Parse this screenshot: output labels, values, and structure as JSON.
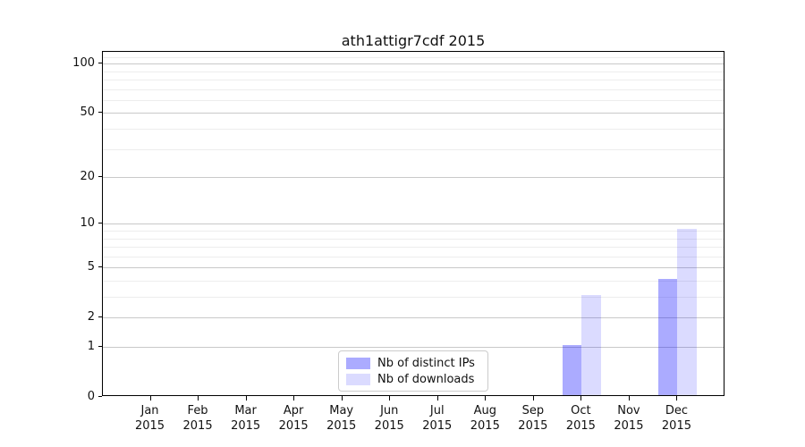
{
  "chart_data": {
    "type": "bar",
    "title": "ath1attigr7cdf 2015",
    "year_label": "2015",
    "months": [
      "Jan",
      "Feb",
      "Mar",
      "Apr",
      "May",
      "Jun",
      "Jul",
      "Aug",
      "Sep",
      "Oct",
      "Nov",
      "Dec"
    ],
    "series": [
      {
        "name": "Nb of distinct IPs",
        "color_hex": "#aaaaf8",
        "fill": "rgba(0,0,255,0.33)",
        "values": [
          0,
          0,
          0,
          0,
          0,
          0,
          0,
          0,
          0,
          1,
          0,
          4
        ]
      },
      {
        "name": "Nb of downloads",
        "color_hex": "#dcdcfa",
        "fill": "rgba(0,0,255,0.14)",
        "values": [
          0,
          0,
          0,
          0,
          0,
          0,
          0,
          0,
          0,
          3,
          0,
          9
        ]
      }
    ],
    "yscale": "log1p",
    "major_yticks": [
      0,
      1,
      2,
      5,
      10,
      20,
      50,
      100
    ],
    "minor_yticks": [
      3,
      4,
      6,
      7,
      8,
      9,
      30,
      40,
      60,
      70,
      80,
      90,
      110
    ],
    "ylim": [
      0,
      118
    ],
    "grid": true,
    "legend_position": "lower-center"
  },
  "colors": {
    "major_grid": "#c9c9c9",
    "minor_grid": "#ededed",
    "spine": "#000000",
    "background": "#ffffff"
  }
}
